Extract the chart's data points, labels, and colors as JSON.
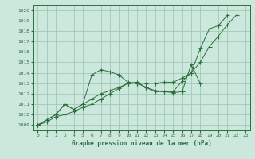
{
  "title": "Graphe pression niveau de la mer (hPa)",
  "bg_color": "#cce8dc",
  "grid_color": "#a0c8b8",
  "line_color": "#2d6e3e",
  "xlim": [
    -0.5,
    23.5
  ],
  "ylim": [
    1008.5,
    1020.5
  ],
  "yticks": [
    1009,
    1010,
    1011,
    1012,
    1013,
    1014,
    1015,
    1016,
    1017,
    1018,
    1019,
    1020
  ],
  "xticks": [
    0,
    1,
    2,
    3,
    4,
    5,
    6,
    7,
    8,
    9,
    10,
    11,
    12,
    13,
    14,
    15,
    16,
    17,
    18,
    19,
    20,
    21,
    22,
    23
  ],
  "series1_x": [
    0,
    1,
    2,
    3,
    4,
    5,
    6,
    7,
    8,
    9,
    10,
    11,
    12,
    13,
    14,
    15,
    16,
    17,
    18
  ],
  "series1_y": [
    1009.0,
    1009.5,
    1010.0,
    1011.0,
    1010.5,
    1011.0,
    1013.8,
    1014.3,
    1014.1,
    1013.8,
    1013.1,
    1013.0,
    1012.6,
    1012.3,
    1012.2,
    1012.1,
    1012.2,
    1014.8,
    1013.0
  ],
  "series2_x": [
    0,
    1,
    2,
    3,
    4,
    5,
    6,
    7,
    8,
    9,
    10,
    11,
    12,
    13,
    14,
    15,
    16,
    17,
    18,
    19,
    20,
    21
  ],
  "series2_y": [
    1009.0,
    1009.5,
    1010.0,
    1011.0,
    1010.5,
    1011.0,
    1011.5,
    1012.0,
    1012.3,
    1012.6,
    1013.0,
    1013.1,
    1012.6,
    1012.2,
    1012.2,
    1012.2,
    1013.2,
    1014.0,
    1016.3,
    1018.2,
    1018.5,
    1019.5
  ],
  "series3_x": [
    0,
    1,
    2,
    3,
    4,
    5,
    6,
    7,
    8,
    9,
    10,
    11,
    12,
    13,
    14,
    15,
    16,
    17,
    18,
    19,
    20,
    21,
    22
  ],
  "series3_y": [
    1009.0,
    1009.3,
    1009.8,
    1010.0,
    1010.3,
    1010.7,
    1011.0,
    1011.5,
    1012.0,
    1012.5,
    1013.0,
    1013.0,
    1013.0,
    1013.0,
    1013.1,
    1013.1,
    1013.5,
    1014.0,
    1015.0,
    1016.5,
    1017.5,
    1018.6,
    1019.5
  ]
}
